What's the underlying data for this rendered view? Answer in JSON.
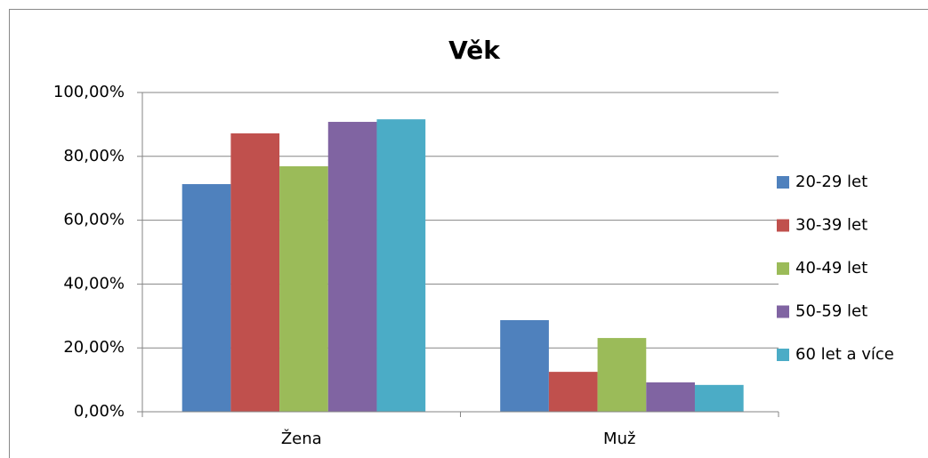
{
  "chart_data": {
    "type": "bar",
    "title": "Věk",
    "categories": [
      "Žena",
      "Muž"
    ],
    "series": [
      {
        "name": "20-29 let",
        "color": "#4f81bd",
        "values": [
          71.3,
          28.7
        ]
      },
      {
        "name": "30-39 let",
        "color": "#c0504d",
        "values": [
          87.2,
          12.5
        ]
      },
      {
        "name": "40-49 let",
        "color": "#9bbb59",
        "values": [
          76.9,
          23.1
        ]
      },
      {
        "name": "50-59 let",
        "color": "#8064a2",
        "values": [
          90.8,
          9.2
        ]
      },
      {
        "name": "60 let a více",
        "color": "#4bacc6",
        "values": [
          91.6,
          8.4
        ]
      }
    ],
    "ylim": [
      0,
      100
    ],
    "yticks": [
      {
        "value": 0,
        "label": "0,00%"
      },
      {
        "value": 20,
        "label": "20,00%"
      },
      {
        "value": 40,
        "label": "40,00%"
      },
      {
        "value": 60,
        "label": "60,00%"
      },
      {
        "value": 80,
        "label": "80,00%"
      },
      {
        "value": 100,
        "label": "100,00%"
      }
    ],
    "grid": true,
    "legend": "right"
  }
}
